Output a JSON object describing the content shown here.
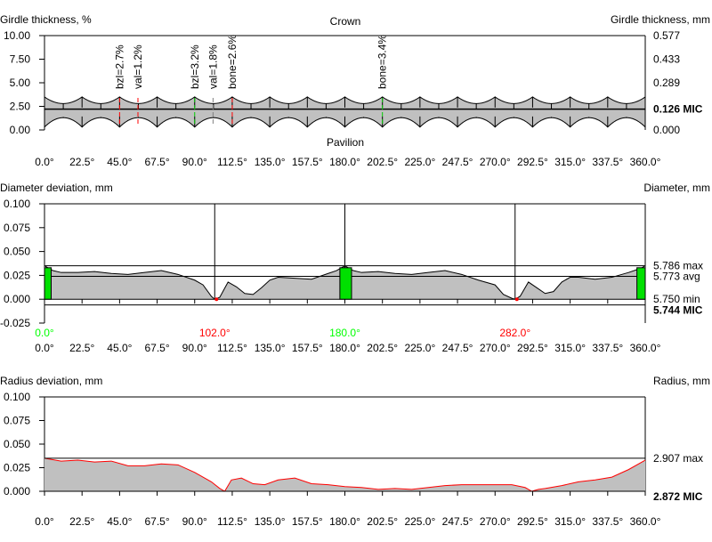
{
  "chart_data": [
    {
      "type": "area",
      "title": "Crown",
      "bottom_label": "Pavilion",
      "ylabel": "Girdle thickness, %",
      "ylabel_right": "Girdle thickness, mm",
      "ylim": [
        0,
        10
      ],
      "yticks": [
        "10.00",
        "7.50",
        "5.00",
        "2.50",
        "0.00"
      ],
      "yticks_right": [
        "0.577",
        "0.433",
        "0.289",
        "0.126 MIC",
        "0.000"
      ],
      "xticks": [
        "0.0°",
        "22.5°",
        "45.0°",
        "67.5°",
        "90.0°",
        "112.5°",
        "135.0°",
        "157.5°",
        "180.0°",
        "202.5°",
        "225.0°",
        "247.5°",
        "270.0°",
        "292.5°",
        "315.0°",
        "337.5°",
        "360.0°"
      ],
      "crown_peak": 3.5,
      "crown_valley": 2.8,
      "pavilion_trough": 0.3,
      "pavilion_top": 1.3,
      "mic": 2.2,
      "annotations": [
        {
          "x": 45,
          "text": "bzl=2.7%",
          "color": "#ff0000"
        },
        {
          "x": 56,
          "text": "val=1.2%",
          "color": "#ff0000"
        },
        {
          "x": 90,
          "text": "bzl=3.2%",
          "color": "#00cc00"
        },
        {
          "x": 101,
          "text": "val=1.8%",
          "color": "#808080"
        },
        {
          "x": 112.5,
          "text": "bone=2.6%",
          "color": "#ff0000"
        },
        {
          "x": 202.5,
          "text": "bone=3.4%",
          "color": "#00cc00"
        }
      ]
    },
    {
      "type": "area",
      "ylabel": "Diameter deviation, mm",
      "ylabel_right": "Diameter, mm",
      "ylim": [
        -0.025,
        0.1
      ],
      "yticks": [
        "0.100",
        "0.075",
        "0.050",
        "0.025",
        "0.000",
        "-0.025"
      ],
      "right_labels": [
        {
          "y": 0.035,
          "text": "5.786 max"
        },
        {
          "y": 0.024,
          "text": "5.773 avg"
        },
        {
          "y": 0,
          "text": "5.750 min"
        },
        {
          "y": -0.006,
          "text": "5.744 MIC",
          "bold": true
        }
      ],
      "vlines": [
        102,
        180,
        282
      ],
      "angle_labels": [
        {
          "x": 0,
          "text": "0.0°",
          "color": "#00ff00"
        },
        {
          "x": 102,
          "text": "102.0°",
          "color": "#ff0000"
        },
        {
          "x": 180,
          "text": "180.0°",
          "color": "#00ff00"
        },
        {
          "x": 282,
          "text": "282.0°",
          "color": "#ff0000"
        }
      ],
      "x": [
        0,
        5,
        10,
        20,
        30,
        40,
        50,
        60,
        70,
        80,
        90,
        95,
        100,
        102,
        105,
        110,
        115,
        120,
        125,
        130,
        135,
        140,
        150,
        160,
        170,
        175,
        178,
        180,
        185,
        190,
        200,
        210,
        220,
        230,
        240,
        250,
        260,
        270,
        275,
        280,
        282,
        285,
        290,
        295,
        300,
        305,
        310,
        315,
        320,
        330,
        340,
        350,
        355,
        358,
        360
      ],
      "values": [
        0.035,
        0.03,
        0.028,
        0.028,
        0.029,
        0.027,
        0.026,
        0.028,
        0.03,
        0.026,
        0.02,
        0.015,
        0.003,
        0,
        0.002,
        0.018,
        0.013,
        0.006,
        0.005,
        0.012,
        0.02,
        0.023,
        0.022,
        0.021,
        0.027,
        0.03,
        0.033,
        0.035,
        0.03,
        0.028,
        0.029,
        0.027,
        0.026,
        0.028,
        0.03,
        0.026,
        0.02,
        0.015,
        0.005,
        0.001,
        0,
        0.003,
        0.018,
        0.012,
        0.006,
        0.008,
        0.018,
        0.023,
        0.023,
        0.021,
        0.023,
        0.028,
        0.031,
        0.033,
        0.035
      ],
      "max": 0.035,
      "avg": 0.024,
      "mic": -0.006
    },
    {
      "type": "area",
      "ylabel": "Radius deviation, mm",
      "ylabel_right": "Radius, mm",
      "ylim": [
        0,
        0.1
      ],
      "yticks": [
        "0.100",
        "0.075",
        "0.050",
        "0.025",
        "0.000"
      ],
      "right_labels": [
        {
          "y": 0.035,
          "text": "2.907 max"
        },
        {
          "y": 0,
          "text": "2.872 MIC",
          "bold": true
        }
      ],
      "x": [
        0,
        10,
        20,
        30,
        40,
        50,
        60,
        70,
        80,
        90,
        100,
        105,
        108,
        112,
        118,
        125,
        132,
        140,
        150,
        160,
        170,
        180,
        190,
        200,
        210,
        220,
        230,
        240,
        250,
        260,
        270,
        280,
        288,
        292,
        296,
        300,
        310,
        320,
        330,
        340,
        350,
        360
      ],
      "values": [
        0.035,
        0.032,
        0.033,
        0.031,
        0.032,
        0.027,
        0.027,
        0.029,
        0.028,
        0.02,
        0.01,
        0.003,
        0,
        0.012,
        0.014,
        0.008,
        0.007,
        0.012,
        0.014,
        0.008,
        0.007,
        0.005,
        0.004,
        0.002,
        0.003,
        0.002,
        0.004,
        0.006,
        0.007,
        0.007,
        0.007,
        0.007,
        0.004,
        0,
        0.002,
        0.003,
        0.006,
        0.01,
        0.012,
        0.015,
        0.023,
        0.033
      ],
      "max": 0.035
    }
  ]
}
